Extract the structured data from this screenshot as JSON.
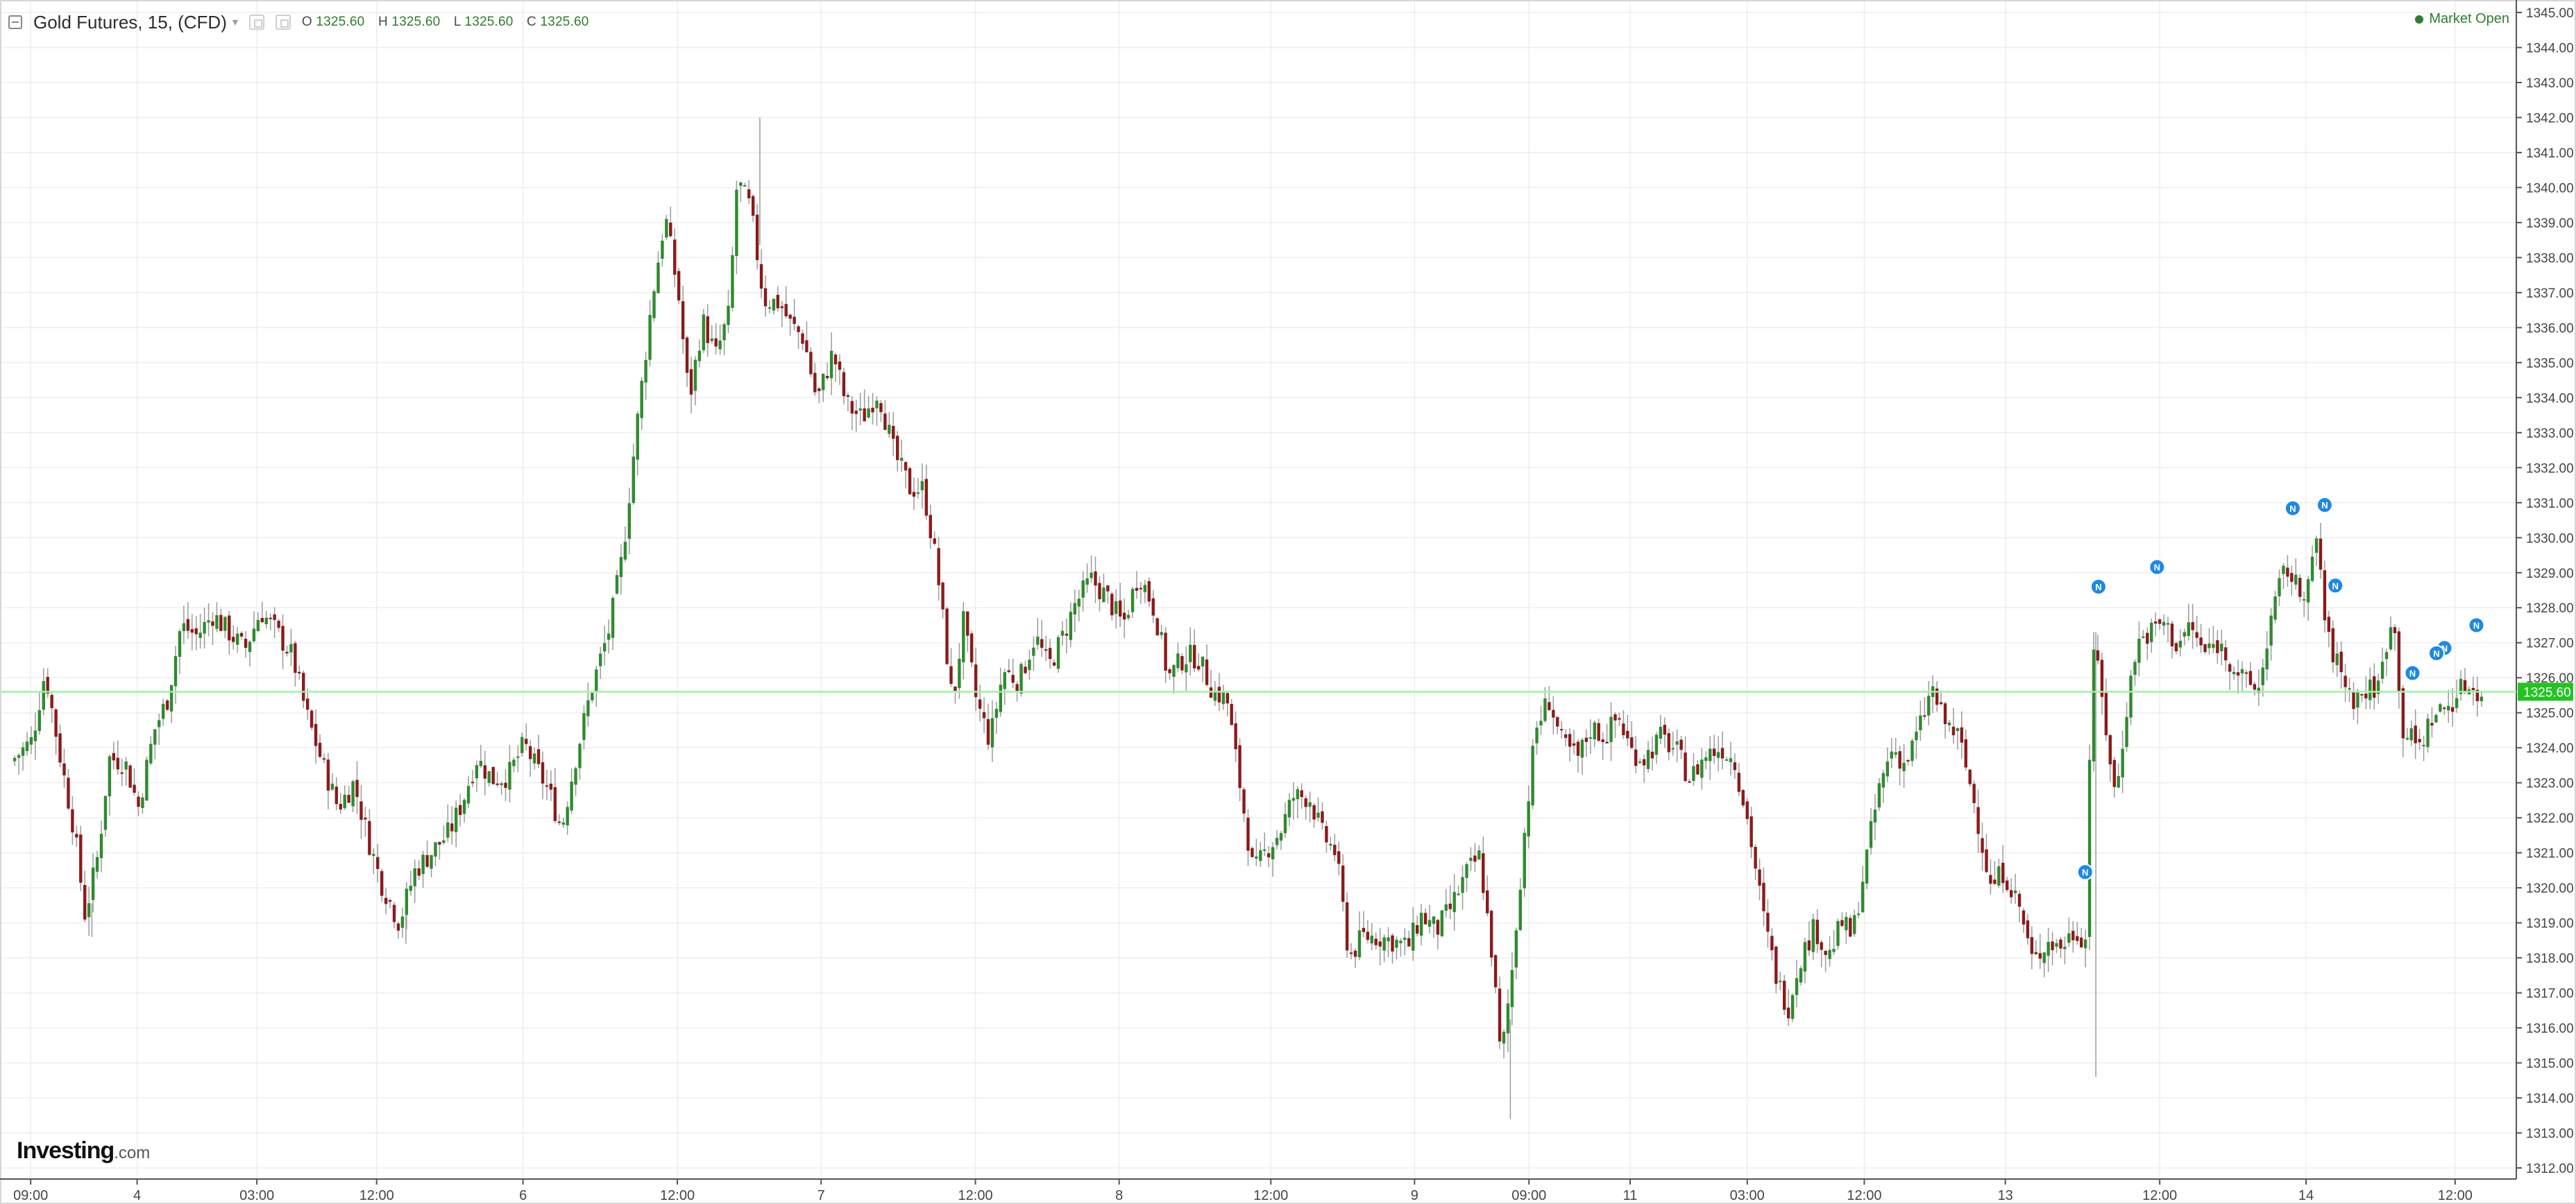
{
  "header": {
    "title": "Gold Futures, 15, (CFD)",
    "ohlc": [
      {
        "label": "O",
        "value": "1325.60"
      },
      {
        "label": "H",
        "value": "1325.60"
      },
      {
        "label": "L",
        "value": "1325.60"
      },
      {
        "label": "C",
        "value": "1325.60"
      }
    ]
  },
  "status": {
    "text": "Market Open",
    "color": "#2e7d32"
  },
  "brand": {
    "name": "Investing",
    "suffix": ".com"
  },
  "colors": {
    "up": "#2e8b2e",
    "down": "#8b1a1a",
    "grid": "#eeeeee",
    "priceLine": "#9ff29f",
    "priceTag": "#22c322",
    "news": "#1e88e5"
  },
  "chart_data": {
    "type": "candlestick",
    "title": "Gold Futures, 15, (CFD)",
    "ylim": [
      1312,
      1345
    ],
    "y_ticks": [
      "1312.00",
      "1313.00",
      "1314.00",
      "1315.00",
      "1316.00",
      "1317.00",
      "1318.00",
      "1319.00",
      "1320.00",
      "1321.00",
      "1322.00",
      "1323.00",
      "1324.00",
      "1325.00",
      "1326.00",
      "1327.00",
      "1328.00",
      "1329.00",
      "1330.00",
      "1331.00",
      "1332.00",
      "1333.00",
      "1334.00",
      "1335.00",
      "1336.00",
      "1337.00",
      "1338.00",
      "1339.00",
      "1340.00",
      "1341.00",
      "1342.00",
      "1343.00",
      "1344.00",
      "1345.00"
    ],
    "x_ticks": [
      {
        "label": "09:00",
        "t": 0.6
      },
      {
        "label": "4",
        "t": 4.6
      },
      {
        "label": "03:00",
        "t": 9.1
      },
      {
        "label": "12:00",
        "t": 13.6
      },
      {
        "label": "6",
        "t": 19.1
      },
      {
        "label": "12:00",
        "t": 24.9
      },
      {
        "label": "7",
        "t": 30.3
      },
      {
        "label": "12:00",
        "t": 36.1
      },
      {
        "label": "8",
        "t": 41.5
      },
      {
        "label": "12:00",
        "t": 47.2
      },
      {
        "label": "9",
        "t": 52.6
      },
      {
        "label": "09:00",
        "t": 56.9
      },
      {
        "label": "11",
        "t": 60.7
      },
      {
        "label": "03:00",
        "t": 65.1
      },
      {
        "label": "12:00",
        "t": 69.5
      },
      {
        "label": "13",
        "t": 74.8
      },
      {
        "label": "12:00",
        "t": 80.6
      },
      {
        "label": "14",
        "t": 86.1
      },
      {
        "label": "12:00",
        "t": 91.7
      }
    ],
    "xlim": [
      -0.5,
      94.0
    ],
    "last_price": "1325.60",
    "path": [
      [
        0.0,
        1323.6
      ],
      [
        0.8,
        1324.2
      ],
      [
        1.3,
        1326.2
      ],
      [
        1.8,
        1324.0
      ],
      [
        2.4,
        1321.6
      ],
      [
        2.8,
        1319.2
      ],
      [
        3.3,
        1321.0
      ],
      [
        3.7,
        1323.7
      ],
      [
        4.3,
        1323.6
      ],
      [
        4.8,
        1322.3
      ],
      [
        5.4,
        1324.5
      ],
      [
        5.9,
        1325.4
      ],
      [
        6.4,
        1327.5
      ],
      [
        7.0,
        1327.2
      ],
      [
        7.6,
        1327.8
      ],
      [
        8.2,
        1327.3
      ],
      [
        8.8,
        1326.8
      ],
      [
        9.4,
        1327.9
      ],
      [
        10.0,
        1327.3
      ],
      [
        10.6,
        1326.6
      ],
      [
        11.1,
        1325.0
      ],
      [
        11.7,
        1323.6
      ],
      [
        12.3,
        1322.3
      ],
      [
        12.9,
        1323.0
      ],
      [
        13.4,
        1321.5
      ],
      [
        13.9,
        1320.2
      ],
      [
        14.6,
        1319.0
      ],
      [
        15.2,
        1320.5
      ],
      [
        15.8,
        1321.0
      ],
      [
        16.5,
        1321.6
      ],
      [
        17.0,
        1322.5
      ],
      [
        17.5,
        1323.7
      ],
      [
        18.1,
        1323.1
      ],
      [
        18.7,
        1323.2
      ],
      [
        19.3,
        1324.1
      ],
      [
        19.7,
        1323.5
      ],
      [
        20.2,
        1322.8
      ],
      [
        20.7,
        1321.7
      ],
      [
        21.2,
        1323.6
      ],
      [
        21.8,
        1325.6
      ],
      [
        22.5,
        1327.4
      ],
      [
        23.0,
        1329.5
      ],
      [
        23.5,
        1333.0
      ],
      [
        24.1,
        1336.8
      ],
      [
        24.6,
        1339.2
      ],
      [
        25.1,
        1336.9
      ],
      [
        25.5,
        1333.9
      ],
      [
        26.0,
        1336.2
      ],
      [
        26.5,
        1335.2
      ],
      [
        27.0,
        1336.4
      ],
      [
        27.3,
        1340.2
      ],
      [
        27.8,
        1339.4
      ],
      [
        28.3,
        1336.8
      ],
      [
        28.9,
        1336.7
      ],
      [
        29.3,
        1336.1
      ],
      [
        29.8,
        1335.7
      ],
      [
        30.3,
        1333.9
      ],
      [
        30.9,
        1335.3
      ],
      [
        31.4,
        1333.8
      ],
      [
        32.0,
        1333.4
      ],
      [
        32.6,
        1334.2
      ],
      [
        33.2,
        1332.4
      ],
      [
        33.8,
        1331.4
      ],
      [
        34.3,
        1331.4
      ],
      [
        34.8,
        1329.2
      ],
      [
        35.4,
        1325.2
      ],
      [
        35.8,
        1327.6
      ],
      [
        36.3,
        1325.3
      ],
      [
        36.8,
        1324.2
      ],
      [
        37.3,
        1326.2
      ],
      [
        37.9,
        1325.9
      ],
      [
        38.5,
        1327.2
      ],
      [
        39.0,
        1326.3
      ],
      [
        39.5,
        1327.1
      ],
      [
        40.0,
        1328.1
      ],
      [
        40.6,
        1328.8
      ],
      [
        41.2,
        1328.3
      ],
      [
        41.8,
        1327.5
      ],
      [
        42.4,
        1329.0
      ],
      [
        43.0,
        1327.9
      ],
      [
        43.5,
        1326.0
      ],
      [
        44.1,
        1326.6
      ],
      [
        44.6,
        1326.6
      ],
      [
        45.2,
        1325.6
      ],
      [
        45.7,
        1325.4
      ],
      [
        46.2,
        1322.9
      ],
      [
        46.7,
        1320.4
      ],
      [
        47.2,
        1321.1
      ],
      [
        47.7,
        1321.6
      ],
      [
        48.2,
        1322.6
      ],
      [
        48.8,
        1322.6
      ],
      [
        49.3,
        1321.5
      ],
      [
        49.8,
        1321.0
      ],
      [
        50.3,
        1318.0
      ],
      [
        50.8,
        1318.6
      ],
      [
        51.4,
        1318.6
      ],
      [
        51.9,
        1318.5
      ],
      [
        52.5,
        1318.3
      ],
      [
        53.0,
        1319.2
      ],
      [
        53.6,
        1318.8
      ],
      [
        54.1,
        1319.4
      ],
      [
        54.7,
        1320.4
      ],
      [
        55.2,
        1320.9
      ],
      [
        55.7,
        1317.9
      ],
      [
        56.0,
        1315.0
      ],
      [
        56.4,
        1317.5
      ],
      [
        56.9,
        1321.7
      ],
      [
        57.3,
        1324.5
      ],
      [
        57.8,
        1325.4
      ],
      [
        58.3,
        1324.1
      ],
      [
        58.9,
        1323.7
      ],
      [
        59.4,
        1324.6
      ],
      [
        59.9,
        1324.3
      ],
      [
        60.4,
        1324.9
      ],
      [
        60.9,
        1323.9
      ],
      [
        61.4,
        1323.7
      ],
      [
        62.0,
        1324.3
      ],
      [
        62.6,
        1323.9
      ],
      [
        63.1,
        1323.1
      ],
      [
        63.7,
        1323.8
      ],
      [
        64.3,
        1324.0
      ],
      [
        64.8,
        1323.6
      ],
      [
        65.3,
        1321.8
      ],
      [
        65.9,
        1319.0
      ],
      [
        66.4,
        1317.3
      ],
      [
        66.8,
        1316.6
      ],
      [
        67.2,
        1317.9
      ],
      [
        67.8,
        1318.9
      ],
      [
        68.3,
        1318.0
      ],
      [
        68.8,
        1319.0
      ],
      [
        69.2,
        1318.6
      ],
      [
        69.7,
        1320.7
      ],
      [
        70.2,
        1322.8
      ],
      [
        70.7,
        1324.0
      ],
      [
        71.2,
        1323.5
      ],
      [
        71.7,
        1324.5
      ],
      [
        72.2,
        1325.7
      ],
      [
        72.6,
        1324.8
      ],
      [
        73.2,
        1324.3
      ],
      [
        73.8,
        1322.4
      ],
      [
        74.4,
        1320.0
      ],
      [
        74.9,
        1320.5
      ],
      [
        75.5,
        1319.4
      ],
      [
        76.0,
        1317.8
      ],
      [
        76.5,
        1318.5
      ],
      [
        77.0,
        1318.3
      ],
      [
        77.6,
        1318.8
      ],
      [
        78.0,
        1318.5
      ],
      [
        78.2,
        1327.3
      ],
      [
        78.6,
        1325.3
      ],
      [
        79.1,
        1322.5
      ],
      [
        79.5,
        1325.1
      ],
      [
        79.9,
        1327.0
      ],
      [
        80.4,
        1327.3
      ],
      [
        80.9,
        1327.6
      ],
      [
        81.4,
        1326.9
      ],
      [
        81.9,
        1327.5
      ],
      [
        82.4,
        1326.7
      ],
      [
        82.9,
        1327.0
      ],
      [
        83.5,
        1326.4
      ],
      [
        84.0,
        1325.8
      ],
      [
        84.5,
        1325.7
      ],
      [
        84.9,
        1327.6
      ],
      [
        85.5,
        1329.2
      ],
      [
        86.0,
        1328.4
      ],
      [
        86.4,
        1328.8
      ],
      [
        86.7,
        1330.1
      ],
      [
        87.0,
        1327.2
      ],
      [
        87.6,
        1326.1
      ],
      [
        88.0,
        1325.4
      ],
      [
        88.5,
        1325.6
      ],
      [
        89.0,
        1325.8
      ],
      [
        89.5,
        1328.0
      ],
      [
        89.9,
        1324.5
      ],
      [
        90.5,
        1324.0
      ],
      [
        91.0,
        1324.9
      ],
      [
        91.6,
        1325.2
      ],
      [
        92.2,
        1325.8
      ],
      [
        92.8,
        1325.6
      ]
    ],
    "extremes": [
      {
        "t": 28.0,
        "high": 1342.0
      },
      {
        "t": 56.2,
        "low": 1313.4
      },
      {
        "t": 78.2,
        "low": 1314.6
      },
      {
        "t": 2.9,
        "low": 1318.6
      },
      {
        "t": 14.7,
        "low": 1318.4
      }
    ],
    "news_markers": [
      77.8,
      78.3,
      80.5,
      85.6,
      87.2,
      86.8,
      91.3,
      90.1,
      91.0,
      92.5
    ]
  }
}
